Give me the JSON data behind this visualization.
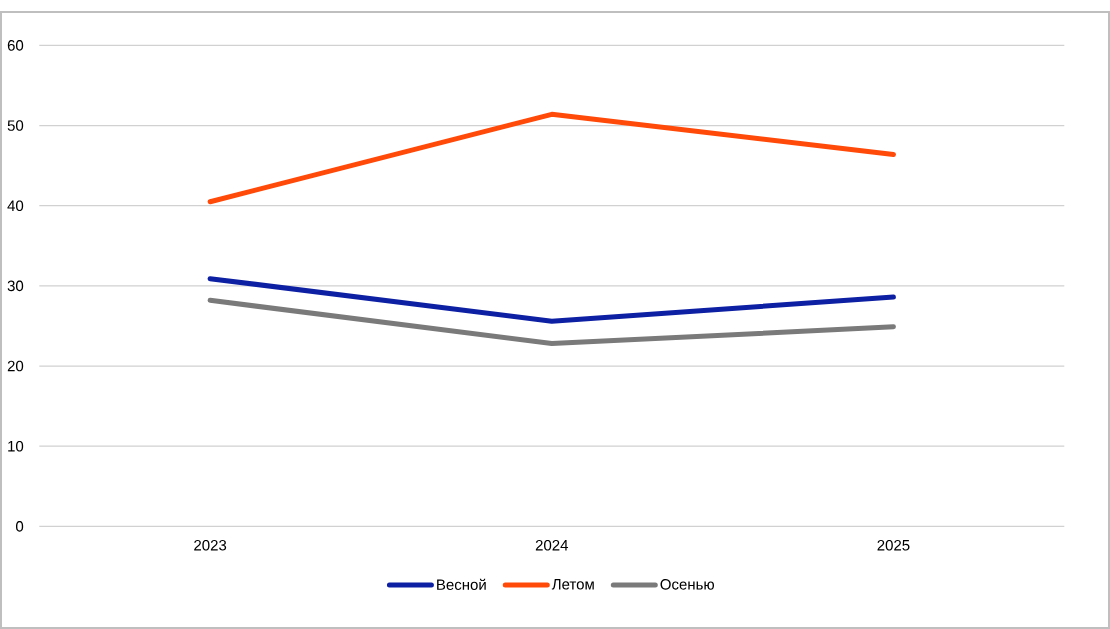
{
  "chart_data": {
    "type": "line",
    "categories": [
      "2023",
      "2024",
      "2025"
    ],
    "series": [
      {
        "name": "Весной",
        "color": "#0d1fa3",
        "values": [
          30.9,
          25.6,
          28.6
        ]
      },
      {
        "name": "Летом",
        "color": "#ff4a0a",
        "values": [
          40.5,
          51.4,
          46.4
        ]
      },
      {
        "name": "Осенью",
        "color": "#7a7a7a",
        "values": [
          28.2,
          22.8,
          24.9
        ]
      }
    ],
    "ylim": [
      0,
      60
    ],
    "yticks": [
      0,
      10,
      20,
      30,
      40,
      50,
      60
    ],
    "grid": "y",
    "legend": "bottom",
    "marker": "none",
    "line_style": "solid"
  }
}
